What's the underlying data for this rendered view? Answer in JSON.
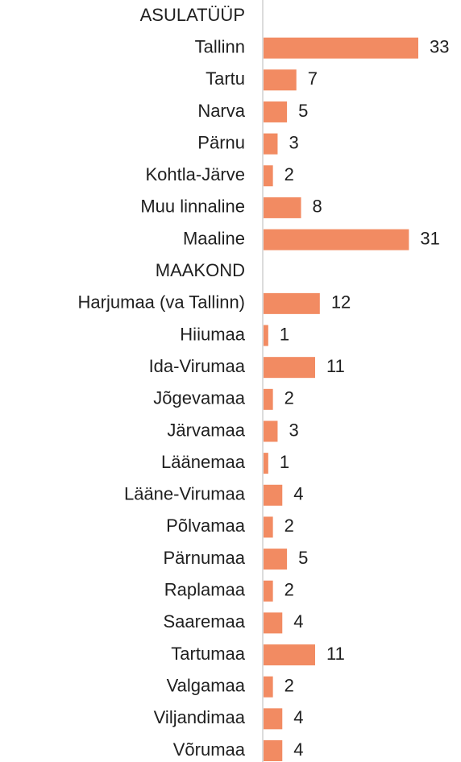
{
  "chart_data": {
    "type": "bar",
    "orientation": "horizontal",
    "categories": [
      "ASULATÜÜP",
      "Tallinn",
      "Tartu",
      "Narva",
      "Pärnu",
      "Kohtla-Järve",
      "Muu linnaline",
      "Maaline",
      "MAAKOND",
      "Harjumaa (va Tallinn)",
      "Hiiumaa",
      "Ida-Virumaa",
      "Jõgevamaa",
      "Järvamaa",
      "Läänemaa",
      "Lääne-Virumaa",
      "Põlvamaa",
      "Pärnumaa",
      "Raplamaa",
      "Saaremaa",
      "Tartumaa",
      "Valgamaa",
      "Viljandimaa",
      "Võrumaa"
    ],
    "values": [
      null,
      33,
      7,
      5,
      3,
      2,
      8,
      31,
      null,
      12,
      1,
      11,
      2,
      3,
      1,
      4,
      2,
      5,
      2,
      4,
      11,
      2,
      4,
      4
    ],
    "color": "#f28b62"
  }
}
